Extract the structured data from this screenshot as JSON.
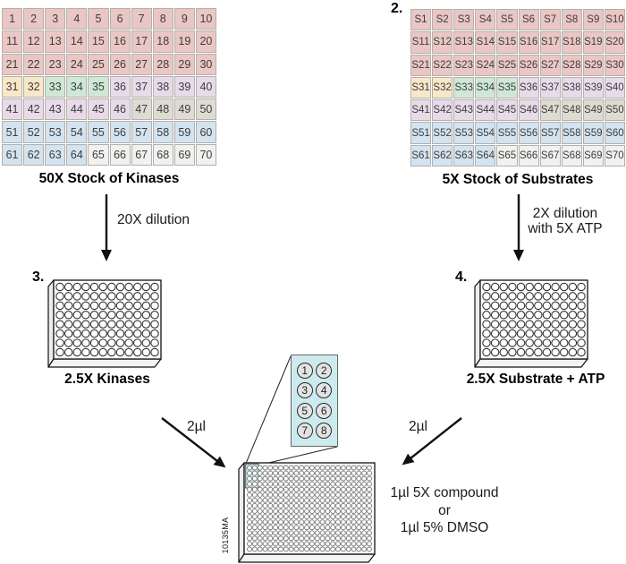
{
  "palette": {
    "p": "#eac7c4",
    "c": "#f8e8c8",
    "g": "#cfe8d5",
    "l": "#e7dbea",
    "y": "#dedcd2",
    "b": "#d3e3f0",
    "w": "#f1f1f0",
    "inset_bg": "#cdebee",
    "cell_border": "#b4afac"
  },
  "kinase_grid": {
    "label": "50X Stock of Kinases",
    "columns": 10,
    "cells": [
      "1",
      "2",
      "3",
      "4",
      "5",
      "6",
      "7",
      "8",
      "9",
      "10",
      "11",
      "12",
      "13",
      "14",
      "15",
      "16",
      "17",
      "18",
      "19",
      "20",
      "21",
      "22",
      "23",
      "24",
      "25",
      "26",
      "27",
      "28",
      "29",
      "30",
      "31",
      "32",
      "33",
      "34",
      "35",
      "36",
      "37",
      "38",
      "39",
      "40",
      "41",
      "42",
      "43",
      "44",
      "45",
      "46",
      "47",
      "48",
      "49",
      "50",
      "51",
      "52",
      "53",
      "54",
      "55",
      "56",
      "57",
      "58",
      "59",
      "60",
      "61",
      "62",
      "63",
      "64",
      "65",
      "66",
      "67",
      "68",
      "69",
      "70"
    ],
    "colors": [
      "p",
      "p",
      "p",
      "p",
      "p",
      "p",
      "p",
      "p",
      "p",
      "p",
      "p",
      "p",
      "p",
      "p",
      "p",
      "p",
      "p",
      "p",
      "p",
      "p",
      "p",
      "p",
      "p",
      "p",
      "p",
      "p",
      "p",
      "p",
      "p",
      "p",
      "c",
      "c",
      "g",
      "g",
      "g",
      "l",
      "l",
      "l",
      "l",
      "l",
      "l",
      "l",
      "l",
      "l",
      "l",
      "l",
      "y",
      "y",
      "y",
      "y",
      "b",
      "b",
      "b",
      "b",
      "b",
      "b",
      "b",
      "b",
      "b",
      "b",
      "b",
      "b",
      "b",
      "b",
      "w",
      "w",
      "w",
      "w",
      "w",
      "w"
    ]
  },
  "substrate_grid": {
    "step_number": "2.",
    "label": "5X Stock of Substrates",
    "columns": 10,
    "cells": [
      "S1",
      "S2",
      "S3",
      "S4",
      "S5",
      "S6",
      "S7",
      "S8",
      "S9",
      "S10",
      "S11",
      "S12",
      "S13",
      "S14",
      "S15",
      "S16",
      "S17",
      "S18",
      "S19",
      "S20",
      "S21",
      "S22",
      "S23",
      "S24",
      "S25",
      "S26",
      "S27",
      "S28",
      "S29",
      "S30",
      "S31",
      "S32",
      "S33",
      "S34",
      "S35",
      "S36",
      "S37",
      "S38",
      "S39",
      "S40",
      "S41",
      "S42",
      "S43",
      "S44",
      "S45",
      "S46",
      "S47",
      "S48",
      "S49",
      "S50",
      "S51",
      "S52",
      "S53",
      "S54",
      "S55",
      "S56",
      "S57",
      "S58",
      "S59",
      "S60",
      "S61",
      "S62",
      "S63",
      "S64",
      "S65",
      "S66",
      "S67",
      "S68",
      "S69",
      "S70"
    ],
    "colors": [
      "p",
      "p",
      "p",
      "p",
      "p",
      "p",
      "p",
      "p",
      "p",
      "p",
      "p",
      "p",
      "p",
      "p",
      "p",
      "p",
      "p",
      "p",
      "p",
      "p",
      "p",
      "p",
      "p",
      "p",
      "p",
      "p",
      "p",
      "p",
      "p",
      "p",
      "c",
      "c",
      "g",
      "g",
      "g",
      "l",
      "l",
      "l",
      "l",
      "l",
      "l",
      "l",
      "l",
      "l",
      "l",
      "l",
      "y",
      "y",
      "y",
      "y",
      "b",
      "b",
      "b",
      "b",
      "b",
      "b",
      "b",
      "b",
      "b",
      "b",
      "b",
      "b",
      "b",
      "b",
      "w",
      "w",
      "w",
      "w",
      "w",
      "w"
    ]
  },
  "dilution_arrows": {
    "kinase": "20X dilution",
    "substrate": [
      "2X dilution",
      "with 5X ATP"
    ]
  },
  "plates": {
    "kinase": {
      "step_number": "3.",
      "label": "2.5X Kinases",
      "rows": 8,
      "cols": 12
    },
    "substrate": {
      "step_number": "4.",
      "label": "2.5X Substrate + ATP",
      "rows": 8,
      "cols": 12
    },
    "assay": {
      "rows": 16,
      "cols": 24,
      "highlight_rows": 4,
      "highlight_cols": 2,
      "side_text": "10135MA"
    }
  },
  "transfer_arrows": {
    "kinase_volume": "2µl",
    "substrate_volume": "2µl"
  },
  "inset": {
    "well_numbers": [
      "1",
      "2",
      "3",
      "4",
      "5",
      "6",
      "7",
      "8"
    ]
  },
  "compound_note": {
    "lines": [
      "1µl 5X compound",
      "or",
      "1µl 5% DMSO"
    ]
  }
}
